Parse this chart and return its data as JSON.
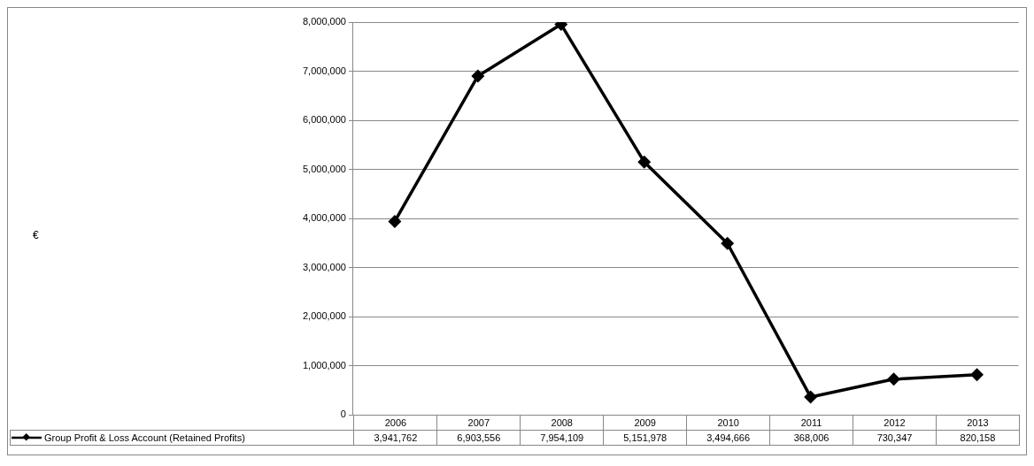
{
  "chart_data": {
    "type": "line",
    "annotations": [
      "€"
    ],
    "categories": [
      "2006",
      "2007",
      "2008",
      "2009",
      "2010",
      "2011",
      "2012",
      "2013"
    ],
    "series": [
      {
        "name": "Group Profit & Loss Account (Retained Profits)",
        "color": "#000000",
        "values": [
          3941762,
          6903556,
          7954109,
          5151978,
          3494666,
          368006,
          730347,
          820158
        ],
        "value_labels": [
          "3,941,762",
          "6,903,556",
          "7,954,109",
          "5,151,978",
          "3,494,666",
          "368,006",
          "730,347",
          "820,158"
        ]
      }
    ],
    "ylim": [
      0,
      8000000
    ],
    "yticks": [
      {
        "value": 0,
        "label": "0"
      },
      {
        "value": 1000000,
        "label": "1,000,000"
      },
      {
        "value": 2000000,
        "label": "2,000,000"
      },
      {
        "value": 3000000,
        "label": "3,000,000"
      },
      {
        "value": 4000000,
        "label": "4,000,000"
      },
      {
        "value": 5000000,
        "label": "5,000,000"
      },
      {
        "value": 6000000,
        "label": "6,000,000"
      },
      {
        "value": 7000000,
        "label": "7,000,000"
      },
      {
        "value": 8000000,
        "label": "8,000,000"
      }
    ],
    "grid": "y",
    "legend": "bottom",
    "marker": "diamond",
    "line_style": "solid"
  }
}
